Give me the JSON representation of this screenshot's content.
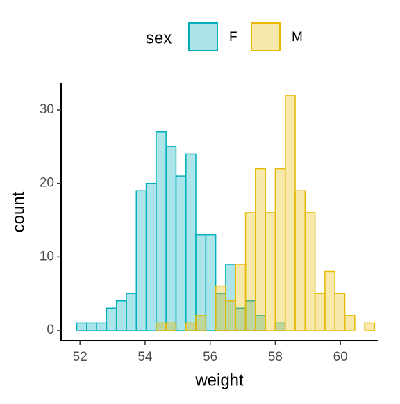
{
  "chart_data": {
    "type": "histogram",
    "x_label": "weight",
    "y_label": "count",
    "legend_title": "sex",
    "legend_position": "top",
    "bins": [
      51.9,
      52.205,
      52.51,
      52.815,
      53.12,
      53.425,
      53.73,
      54.035,
      54.34,
      54.645,
      54.95,
      55.255,
      55.56,
      55.865,
      56.17,
      56.475,
      56.78,
      57.085,
      57.39,
      57.695,
      58.0,
      58.305,
      58.61,
      58.915,
      59.22,
      59.525,
      59.83,
      60.135,
      60.44,
      60.745,
      61.05
    ],
    "series": [
      {
        "name": "F",
        "color": "#00AFBB",
        "values": [
          1,
          1,
          1,
          3,
          4,
          5,
          19,
          20,
          27,
          25,
          21,
          24,
          13,
          13,
          5,
          9,
          3,
          4,
          2,
          0,
          1,
          0,
          0,
          0,
          0,
          0,
          0,
          0,
          0,
          0
        ]
      },
      {
        "name": "M",
        "color": "#E7B800",
        "values": [
          0,
          0,
          0,
          0,
          0,
          0,
          0,
          0,
          1,
          1,
          0,
          1,
          2,
          0,
          6,
          4,
          9,
          16,
          22,
          16,
          22,
          32,
          19,
          16,
          5,
          8,
          5,
          2,
          0,
          1
        ]
      }
    ],
    "xlim": [
      51.42,
      61.17
    ],
    "xticks": [
      52,
      54,
      56,
      58,
      60
    ],
    "ylim": [
      -1.42,
      33.6
    ],
    "yticks": [
      0,
      10,
      20,
      30
    ]
  }
}
